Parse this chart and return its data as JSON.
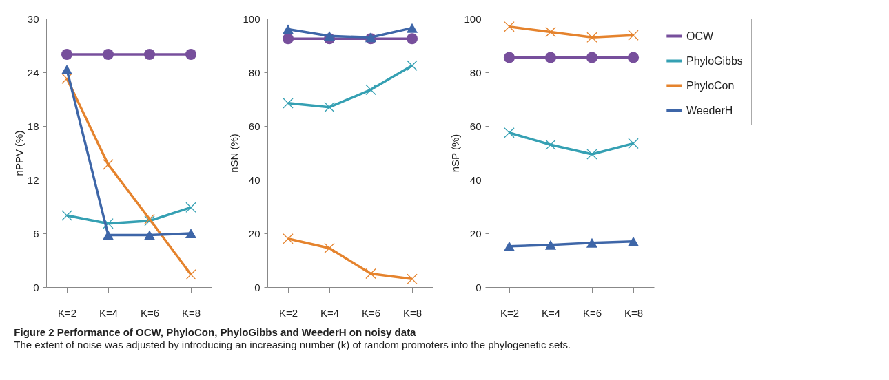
{
  "chart_data": [
    {
      "type": "line",
      "title": "Figure 2 Performance of OCW, PhyloCon, PhyloGibbs and WeederH on noisy data",
      "annotations": [
        "The extent of noise was adjusted by introducing an increasing number (k) of random promoters into the phylogenetic sets."
      ],
      "ylabel": "nPPV (%)",
      "categories": [
        "K=2",
        "K=4",
        "K=6",
        "K=8"
      ],
      "ylim": [
        0,
        30
      ],
      "yticks": [
        0,
        6,
        12,
        18,
        24,
        30
      ],
      "grid": false,
      "legend": "right",
      "series": [
        {
          "name": "OCW",
          "color": "#774f9c",
          "marker": "circle",
          "values": [
            26,
            26,
            26,
            26
          ]
        },
        {
          "name": "PhyloGibbs",
          "color": "#35a0b3",
          "marker": "cross",
          "values": [
            8,
            7.1,
            7.4,
            8.9
          ]
        },
        {
          "name": "PhyloCon",
          "color": "#e5832d",
          "marker": "cross",
          "values": [
            23.3,
            13.7,
            7.6,
            1.4
          ]
        },
        {
          "name": "WeederH",
          "color": "#3e66a8",
          "marker": "triangle",
          "values": [
            24.3,
            5.8,
            5.8,
            6.0
          ]
        }
      ]
    },
    {
      "type": "line",
      "ylabel": "nSN (%)",
      "categories": [
        "K=2",
        "K=4",
        "K=6",
        "K=8"
      ],
      "ylim": [
        0,
        100
      ],
      "yticks": [
        0,
        20,
        40,
        60,
        80,
        100
      ],
      "grid": false,
      "legend": "right",
      "series": [
        {
          "name": "OCW",
          "color": "#774f9c",
          "marker": "circle",
          "values": [
            92.5,
            92.5,
            92.5,
            92.5
          ]
        },
        {
          "name": "PhyloGibbs",
          "color": "#35a0b3",
          "marker": "cross",
          "values": [
            68.5,
            67,
            73.5,
            82.5
          ]
        },
        {
          "name": "PhyloCon",
          "color": "#e5832d",
          "marker": "cross",
          "values": [
            18,
            14.5,
            5,
            3
          ]
        },
        {
          "name": "WeederH",
          "color": "#3e66a8",
          "marker": "triangle",
          "values": [
            96,
            93.5,
            93,
            96.5
          ]
        }
      ]
    },
    {
      "type": "line",
      "ylabel": "nSP (%)",
      "categories": [
        "K=2",
        "K=4",
        "K=6",
        "K=8"
      ],
      "ylim": [
        0,
        100
      ],
      "yticks": [
        0,
        20,
        40,
        60,
        80,
        100
      ],
      "grid": false,
      "legend": "right",
      "series": [
        {
          "name": "OCW",
          "color": "#774f9c",
          "marker": "circle",
          "values": [
            85.5,
            85.5,
            85.5,
            85.5
          ]
        },
        {
          "name": "PhyloGibbs",
          "color": "#35a0b3",
          "marker": "cross",
          "values": [
            57.5,
            53,
            49.5,
            53.5
          ]
        },
        {
          "name": "PhyloCon",
          "color": "#e5832d",
          "marker": "cross",
          "values": [
            97,
            95,
            93,
            93.8
          ]
        },
        {
          "name": "WeederH",
          "color": "#3e66a8",
          "marker": "triangle",
          "values": [
            15.2,
            15.7,
            16.5,
            17
          ]
        }
      ]
    }
  ]
}
